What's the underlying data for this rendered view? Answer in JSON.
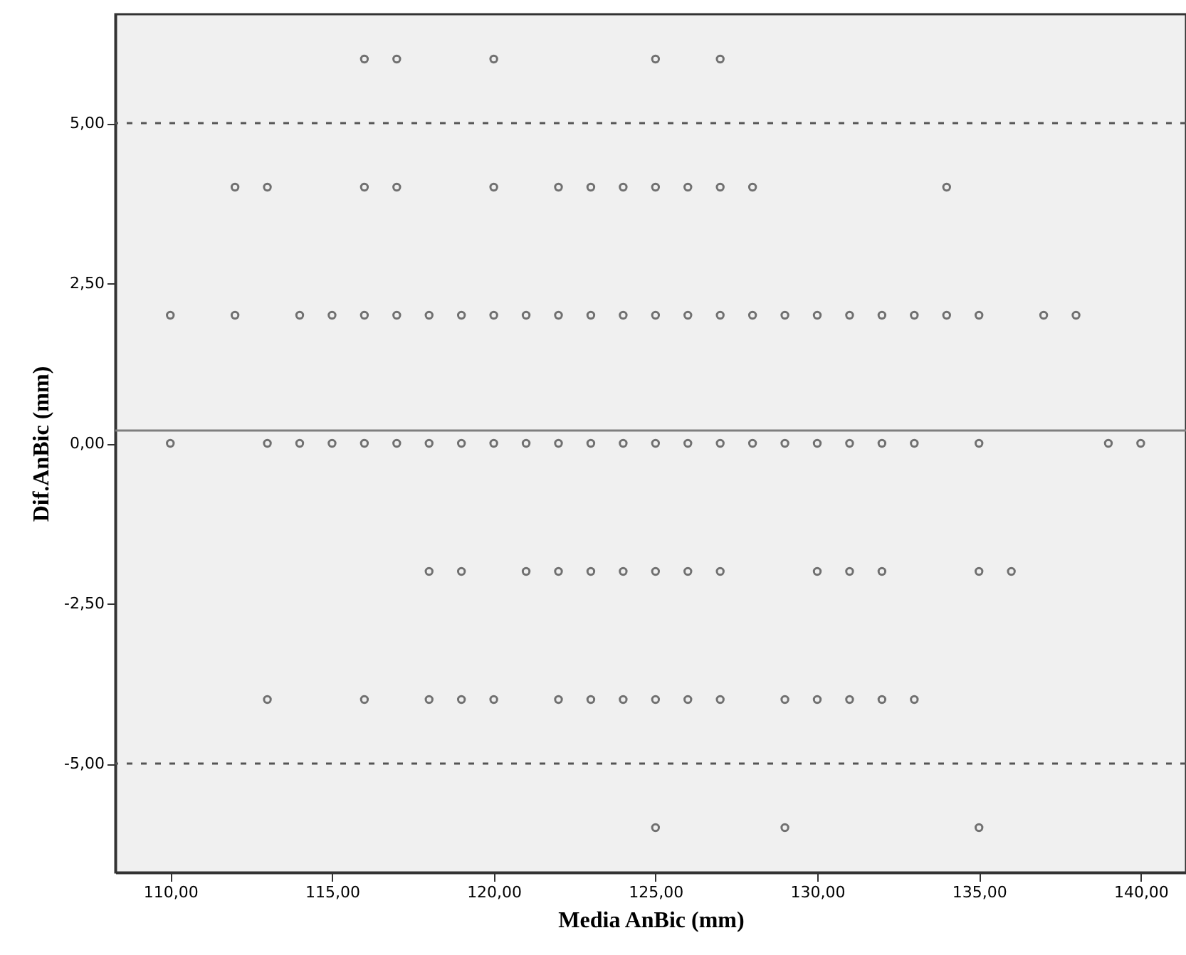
{
  "chart_data": {
    "type": "scatter",
    "xlabel": "Media AnBic (mm)",
    "ylabel": "Dif.AnBic (mm)",
    "xlim": [
      108.3,
      141.4
    ],
    "ylim": [
      -6.7,
      6.7
    ],
    "xticks": [
      {
        "value": 110,
        "label": "110,00"
      },
      {
        "value": 115,
        "label": "115,00"
      },
      {
        "value": 120,
        "label": "120,00"
      },
      {
        "value": 125,
        "label": "125,00"
      },
      {
        "value": 130,
        "label": "130,00"
      },
      {
        "value": 135,
        "label": "135,00"
      },
      {
        "value": 140,
        "label": "140,00"
      }
    ],
    "yticks": [
      {
        "value": -5,
        "label": "-5,00"
      },
      {
        "value": -2.5,
        "label": "-2,50"
      },
      {
        "value": 0,
        "label": "0,00"
      },
      {
        "value": 2.5,
        "label": "2,50"
      },
      {
        "value": 5,
        "label": "5,00"
      }
    ],
    "grid": false,
    "marker": "circle",
    "ref_lines": [
      {
        "axis": "y",
        "value": 0.2,
        "label": null,
        "color": "#7f7f7f",
        "line_style": "solid"
      },
      {
        "axis": "y",
        "value": 5,
        "label": null,
        "color": "#555555",
        "line_style": "dashed"
      },
      {
        "axis": "y",
        "value": -5,
        "label": null,
        "color": "#555555",
        "line_style": "dashed"
      }
    ],
    "series": [
      {
        "color": "#707070",
        "x": [
          116,
          117,
          120,
          125,
          127,
          112,
          113,
          116,
          117,
          120,
          122,
          123,
          124,
          125,
          126,
          127,
          128,
          134,
          110,
          112,
          114,
          115,
          116,
          117,
          118,
          119,
          120,
          121,
          122,
          123,
          124,
          125,
          126,
          127,
          128,
          129,
          130,
          131,
          132,
          133,
          134,
          135,
          137,
          138,
          110,
          113,
          114,
          115,
          116,
          117,
          118,
          119,
          120,
          121,
          122,
          123,
          124,
          125,
          126,
          127,
          128,
          129,
          130,
          131,
          132,
          133,
          135,
          139,
          140,
          118,
          119,
          121,
          122,
          123,
          124,
          125,
          126,
          127,
          130,
          131,
          132,
          135,
          136,
          113,
          116,
          118,
          119,
          120,
          122,
          123,
          124,
          125,
          126,
          127,
          129,
          130,
          131,
          132,
          133,
          125,
          129,
          135
        ],
        "values": [
          6,
          6,
          6,
          6,
          6,
          4,
          4,
          4,
          4,
          4,
          4,
          4,
          4,
          4,
          4,
          4,
          4,
          4,
          2,
          2,
          2,
          2,
          2,
          2,
          2,
          2,
          2,
          2,
          2,
          2,
          2,
          2,
          2,
          2,
          2,
          2,
          2,
          2,
          2,
          2,
          2,
          2,
          2,
          2,
          0,
          0,
          0,
          0,
          0,
          0,
          0,
          0,
          0,
          0,
          0,
          0,
          0,
          0,
          0,
          0,
          0,
          0,
          0,
          0,
          0,
          0,
          0,
          0,
          0,
          -2,
          -2,
          -2,
          -2,
          -2,
          -2,
          -2,
          -2,
          -2,
          -2,
          -2,
          -2,
          -2,
          -2,
          -4,
          -4,
          -4,
          -4,
          -4,
          -4,
          -4,
          -4,
          -4,
          -4,
          -4,
          -4,
          -4,
          -4,
          -4,
          -4,
          -6,
          -6,
          -6
        ]
      }
    ]
  }
}
